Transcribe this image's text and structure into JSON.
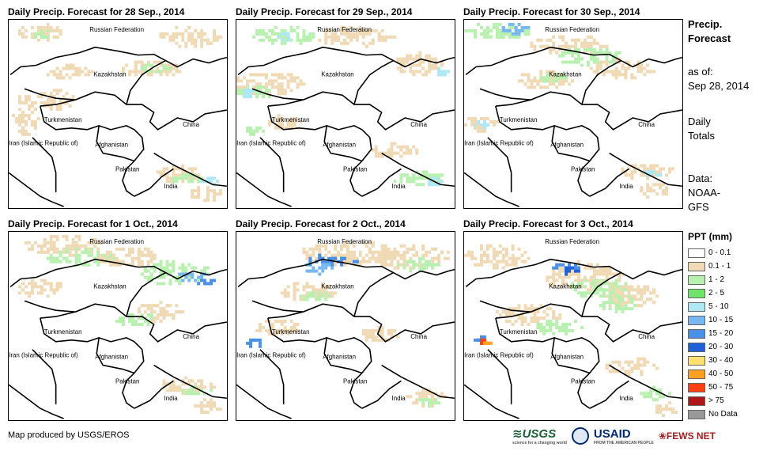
{
  "panels": [
    {
      "title": "Daily Precip. Forecast for 28 Sep., 2014",
      "variant": 0
    },
    {
      "title": "Daily Precip. Forecast for 29 Sep., 2014",
      "variant": 1
    },
    {
      "title": "Daily Precip. Forecast for 30 Sep., 2014",
      "variant": 2
    },
    {
      "title": "Daily Precip. Forecast for 1 Oct., 2014",
      "variant": 3
    },
    {
      "title": "Daily Precip. Forecast for 2 Oct., 2014",
      "variant": 4
    },
    {
      "title": "Daily Precip. Forecast for 3 Oct., 2014",
      "variant": 5
    }
  ],
  "map_labels": {
    "russia": "Russian Federation",
    "kazakhstan": "Kazakhstan",
    "turkmenistan": "Turkmenistan",
    "china": "China",
    "iran": "Iran (Islamic Republic of)",
    "afghanistan": "Afghanistan",
    "pakistan": "Pakistan",
    "india": "India"
  },
  "side": {
    "title1": "Precip.",
    "title2": "Forecast",
    "asof1": "as of:",
    "asof2": "Sep 28, 2014",
    "daily1": "Daily",
    "daily2": "Totals",
    "data1": "Data:",
    "data2": "NOAA-",
    "data3": "GFS"
  },
  "legend": {
    "title": "PPT (mm)",
    "items": [
      {
        "label": "0 - 0.1",
        "color": "#ffffff"
      },
      {
        "label": "0.1 - 1",
        "color": "#f0d9b5"
      },
      {
        "label": "1 - 2",
        "color": "#b8f0b0"
      },
      {
        "label": "2 - 5",
        "color": "#6ee46a"
      },
      {
        "label": "5 - 10",
        "color": "#aee8f5"
      },
      {
        "label": "10 - 15",
        "color": "#78b8f0"
      },
      {
        "label": "15 - 20",
        "color": "#4890e8"
      },
      {
        "label": "20 - 30",
        "color": "#2060d8"
      },
      {
        "label": "30 - 40",
        "color": "#ffe070"
      },
      {
        "label": "40 - 50",
        "color": "#ffa020"
      },
      {
        "label": "50 - 75",
        "color": "#ff4010"
      },
      {
        "label": "> 75",
        "color": "#b01818"
      },
      {
        "label": "No Data",
        "color": "#999999"
      }
    ]
  },
  "credit": "Map produced by USGS/EROS",
  "logos": {
    "usgs": "USGS",
    "usgs_tag": "science for a changing world",
    "usaid": "USAID",
    "usaid_tag": "FROM THE AMERICAN PEOPLE",
    "fews": "FEWS NET"
  }
}
